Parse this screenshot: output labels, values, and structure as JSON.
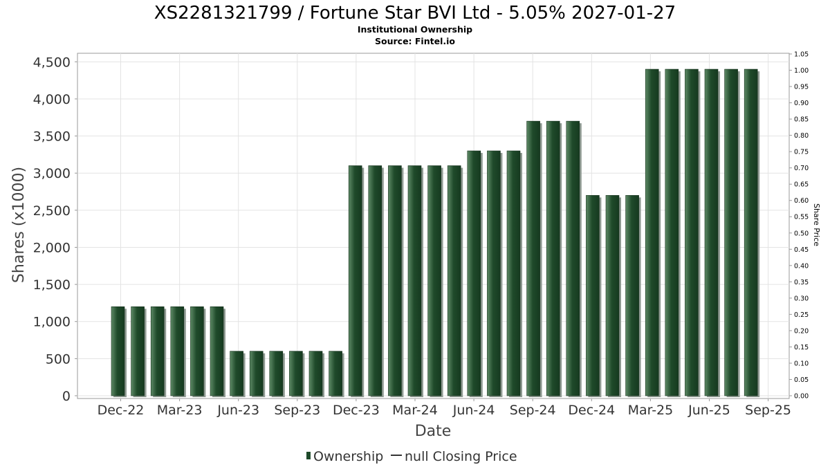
{
  "chart_data": {
    "type": "bar",
    "title": "XS2281321799 / Fortune Star BVI Ltd - 5.05% 2027-01-27",
    "subtitle": "Institutional Ownership",
    "source": "Source: Fintel.io",
    "xlabel": "Date",
    "ylabel": "Shares (x1000)",
    "y2label": "Share Price",
    "ylim": [
      0,
      4600
    ],
    "y2lim": [
      0,
      1.05
    ],
    "yticks": [
      "0",
      "500",
      "1,000",
      "1,500",
      "2,000",
      "2,500",
      "3,000",
      "3,500",
      "4,000",
      "4,500"
    ],
    "y2ticks": [
      "0.00",
      "0.05",
      "0.10",
      "0.15",
      "0.20",
      "0.25",
      "0.30",
      "0.35",
      "0.40",
      "0.45",
      "0.50",
      "0.55",
      "0.60",
      "0.65",
      "0.70",
      "0.75",
      "0.80",
      "0.85",
      "0.90",
      "0.95",
      "1.00",
      "1.05"
    ],
    "xticks": [
      "Dec-22",
      "Mar-23",
      "Jun-23",
      "Sep-23",
      "Dec-23",
      "Mar-24",
      "Jun-24",
      "Sep-24",
      "Dec-24",
      "Mar-25",
      "Jun-25",
      "Sep-25"
    ],
    "grid": true,
    "legend_position": "bottom",
    "series": [
      {
        "name": "Ownership",
        "color": "#1e4a2a",
        "values": [
          1200,
          1200,
          1200,
          1200,
          1200,
          1200,
          600,
          600,
          600,
          600,
          600,
          600,
          3100,
          3100,
          3100,
          3100,
          3100,
          3100,
          3300,
          3300,
          3300,
          3700,
          3700,
          3700,
          2700,
          2700,
          2700,
          4400,
          4400,
          4400,
          4400,
          4400,
          4400
        ]
      }
    ],
    "legend": [
      {
        "label": "Ownership",
        "kind": "bar"
      },
      {
        "label": "null Closing Price",
        "kind": "line"
      }
    ]
  }
}
